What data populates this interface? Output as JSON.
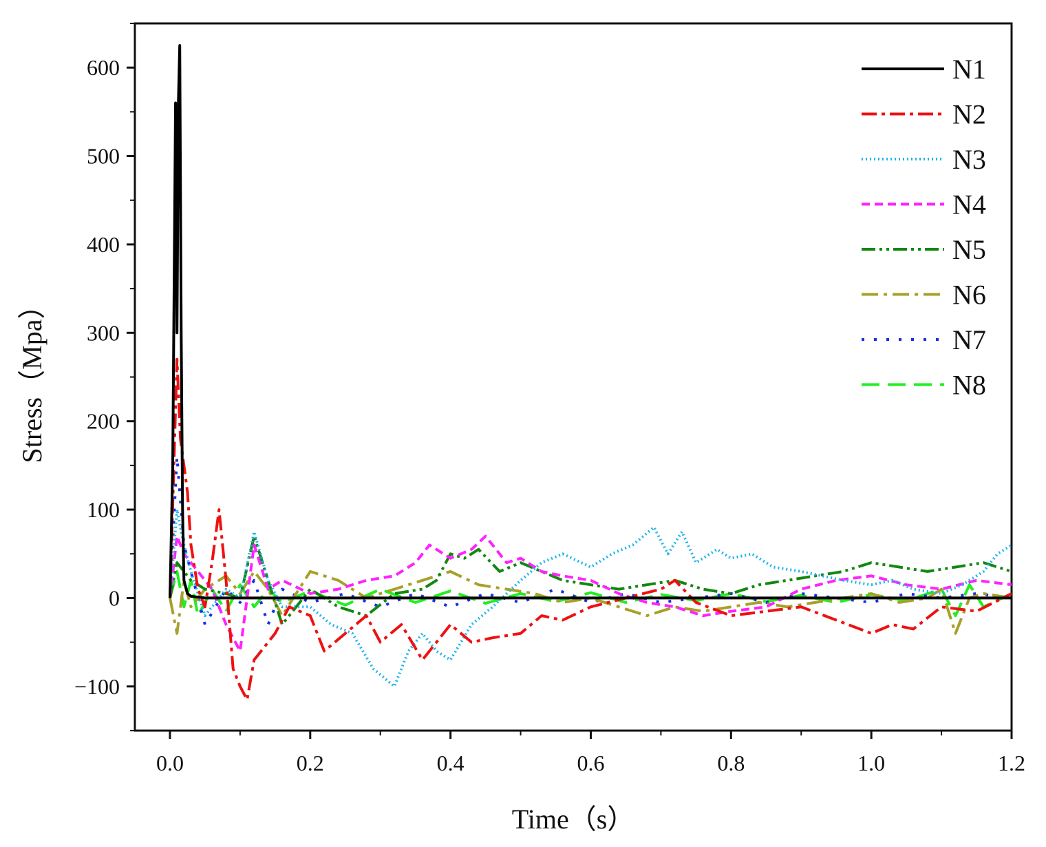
{
  "chart_data": {
    "type": "line",
    "title": "",
    "xlabel": "Time（s）",
    "ylabel": "Stress（Mpa）",
    "xlim": [
      -0.05,
      1.2
    ],
    "ylim": [
      -150,
      650
    ],
    "xticks": [
      0.0,
      0.2,
      0.4,
      0.6,
      0.8,
      1.0,
      1.2
    ],
    "xtick_labels": [
      "0.0",
      "0.2",
      "0.4",
      "0.6",
      "0.8",
      "1.0",
      "1.2"
    ],
    "yticks": [
      -100,
      0,
      100,
      200,
      300,
      400,
      500,
      600
    ],
    "ytick_labels": [
      "−100",
      "0",
      "100",
      "200",
      "300",
      "400",
      "500",
      "600"
    ],
    "grid": false,
    "legend_position": "top-right",
    "series": [
      {
        "name": "N1",
        "color": "#000000",
        "dash": "solid",
        "x": [
          0.0,
          0.004,
          0.008,
          0.01,
          0.012,
          0.014,
          0.016,
          0.018,
          0.02,
          0.025,
          0.03,
          0.05,
          0.1,
          0.3,
          0.6,
          0.9,
          1.2
        ],
        "y": [
          0,
          150,
          560,
          300,
          560,
          625,
          300,
          100,
          20,
          5,
          2,
          0,
          0,
          0,
          0,
          0,
          0
        ]
      },
      {
        "name": "N2",
        "color": "#ee1111",
        "dash": "dashdot",
        "x": [
          0.0,
          0.01,
          0.015,
          0.02,
          0.025,
          0.03,
          0.04,
          0.05,
          0.06,
          0.07,
          0.08,
          0.09,
          0.1,
          0.11,
          0.12,
          0.13,
          0.15,
          0.17,
          0.2,
          0.22,
          0.25,
          0.28,
          0.3,
          0.33,
          0.36,
          0.4,
          0.43,
          0.46,
          0.5,
          0.53,
          0.56,
          0.6,
          0.65,
          0.7,
          0.72,
          0.75,
          0.8,
          0.85,
          0.9,
          0.95,
          1.0,
          1.03,
          1.06,
          1.1,
          1.15,
          1.2
        ],
        "y": [
          0,
          270,
          180,
          150,
          120,
          60,
          10,
          -10,
          40,
          100,
          20,
          -80,
          -100,
          -115,
          -70,
          -60,
          -40,
          -10,
          -20,
          -60,
          -40,
          -20,
          -50,
          -30,
          -70,
          -30,
          -50,
          -45,
          -40,
          -20,
          -25,
          -10,
          0,
          10,
          20,
          -5,
          -20,
          -15,
          -10,
          -25,
          -40,
          -30,
          -35,
          -10,
          -15,
          5
        ]
      },
      {
        "name": "N3",
        "color": "#1eb4ea",
        "dash": "dotted",
        "x": [
          0.0,
          0.01,
          0.02,
          0.03,
          0.05,
          0.08,
          0.1,
          0.12,
          0.14,
          0.16,
          0.2,
          0.23,
          0.26,
          0.29,
          0.32,
          0.34,
          0.36,
          0.38,
          0.4,
          0.43,
          0.46,
          0.5,
          0.53,
          0.56,
          0.6,
          0.63,
          0.66,
          0.69,
          0.71,
          0.73,
          0.75,
          0.78,
          0.8,
          0.83,
          0.86,
          0.9,
          0.93,
          0.96,
          1.0,
          1.03,
          1.06,
          1.1,
          1.13,
          1.16,
          1.18,
          1.2
        ],
        "y": [
          0,
          100,
          60,
          30,
          -20,
          10,
          0,
          75,
          20,
          -10,
          -10,
          -30,
          -40,
          -80,
          -100,
          -60,
          -40,
          -60,
          -70,
          -30,
          -10,
          20,
          40,
          50,
          35,
          50,
          60,
          80,
          50,
          75,
          40,
          55,
          45,
          50,
          35,
          30,
          25,
          20,
          15,
          20,
          10,
          5,
          15,
          30,
          50,
          60
        ]
      },
      {
        "name": "N4",
        "color": "#ff22ff",
        "dash": "dashed",
        "x": [
          0.0,
          0.01,
          0.02,
          0.04,
          0.06,
          0.08,
          0.1,
          0.12,
          0.14,
          0.16,
          0.2,
          0.24,
          0.28,
          0.32,
          0.35,
          0.37,
          0.4,
          0.43,
          0.45,
          0.48,
          0.5,
          0.53,
          0.56,
          0.6,
          0.64,
          0.68,
          0.72,
          0.76,
          0.8,
          0.85,
          0.9,
          0.95,
          1.0,
          1.05,
          1.1,
          1.15,
          1.2
        ],
        "y": [
          0,
          70,
          50,
          30,
          10,
          -30,
          -60,
          60,
          10,
          20,
          5,
          10,
          20,
          25,
          40,
          60,
          45,
          55,
          70,
          40,
          45,
          30,
          25,
          20,
          5,
          -5,
          -10,
          -20,
          -15,
          -10,
          10,
          20,
          25,
          15,
          10,
          20,
          15
        ]
      },
      {
        "name": "N5",
        "color": "#118811",
        "dash": "dashdotdot",
        "x": [
          0.0,
          0.01,
          0.03,
          0.05,
          0.08,
          0.1,
          0.12,
          0.14,
          0.16,
          0.2,
          0.24,
          0.28,
          0.32,
          0.36,
          0.38,
          0.4,
          0.42,
          0.44,
          0.47,
          0.5,
          0.53,
          0.56,
          0.6,
          0.64,
          0.68,
          0.72,
          0.76,
          0.8,
          0.84,
          0.88,
          0.92,
          0.96,
          1.0,
          1.04,
          1.08,
          1.12,
          1.16,
          1.2
        ],
        "y": [
          0,
          40,
          20,
          10,
          5,
          0,
          70,
          20,
          -30,
          10,
          -10,
          -20,
          5,
          10,
          20,
          50,
          45,
          55,
          30,
          40,
          30,
          20,
          15,
          10,
          15,
          20,
          10,
          5,
          15,
          20,
          25,
          30,
          40,
          35,
          30,
          35,
          40,
          30
        ]
      },
      {
        "name": "N6",
        "color": "#a8a028",
        "dash": "longdashdot",
        "x": [
          0.0,
          0.01,
          0.02,
          0.03,
          0.05,
          0.08,
          0.1,
          0.12,
          0.14,
          0.16,
          0.2,
          0.24,
          0.28,
          0.32,
          0.36,
          0.4,
          0.44,
          0.48,
          0.52,
          0.56,
          0.6,
          0.64,
          0.68,
          0.72,
          0.76,
          0.8,
          0.84,
          0.88,
          0.92,
          0.96,
          1.0,
          1.04,
          1.08,
          1.1,
          1.12,
          1.14,
          1.16,
          1.2
        ],
        "y": [
          0,
          -40,
          20,
          -10,
          10,
          25,
          5,
          30,
          10,
          -20,
          30,
          20,
          0,
          10,
          20,
          30,
          15,
          10,
          5,
          -5,
          0,
          -10,
          -20,
          -10,
          -15,
          -10,
          -5,
          -10,
          -5,
          0,
          5,
          -5,
          0,
          10,
          -40,
          0,
          5,
          0
        ]
      },
      {
        "name": "N7",
        "color": "#1a2de0",
        "dash": "sparsedot",
        "x": [
          0.0,
          0.01,
          0.02,
          0.03,
          0.05,
          0.08,
          0.1,
          0.12,
          0.14,
          0.16,
          0.2,
          0.25,
          0.3,
          0.35,
          0.4,
          0.45,
          0.5,
          0.55,
          0.6,
          0.65,
          0.7,
          0.75,
          0.8,
          0.85,
          0.9,
          0.95,
          1.0,
          1.05,
          1.1,
          1.15,
          1.2
        ],
        "y": [
          0,
          160,
          60,
          30,
          -30,
          10,
          -5,
          20,
          -30,
          10,
          -5,
          5,
          -10,
          5,
          -10,
          5,
          -5,
          10,
          -5,
          5,
          -5,
          0,
          5,
          -5,
          5,
          0,
          -5,
          5,
          0,
          5,
          0
        ]
      },
      {
        "name": "N8",
        "color": "#22ee22",
        "dash": "longdash",
        "x": [
          0.0,
          0.01,
          0.02,
          0.03,
          0.04,
          0.06,
          0.08,
          0.1,
          0.12,
          0.14,
          0.16,
          0.2,
          0.25,
          0.3,
          0.35,
          0.4,
          0.45,
          0.5,
          0.55,
          0.6,
          0.65,
          0.7,
          0.75,
          0.8,
          0.85,
          0.9,
          0.95,
          1.0,
          1.05,
          1.1,
          1.12,
          1.14,
          1.16,
          1.2
        ],
        "y": [
          0,
          30,
          -10,
          20,
          -20,
          10,
          -15,
          15,
          -10,
          10,
          -5,
          8,
          -8,
          10,
          -5,
          8,
          -6,
          5,
          -4,
          6,
          -5,
          4,
          -3,
          5,
          -4,
          3,
          -5,
          4,
          -3,
          10,
          -20,
          15,
          -10,
          5
        ]
      }
    ]
  }
}
